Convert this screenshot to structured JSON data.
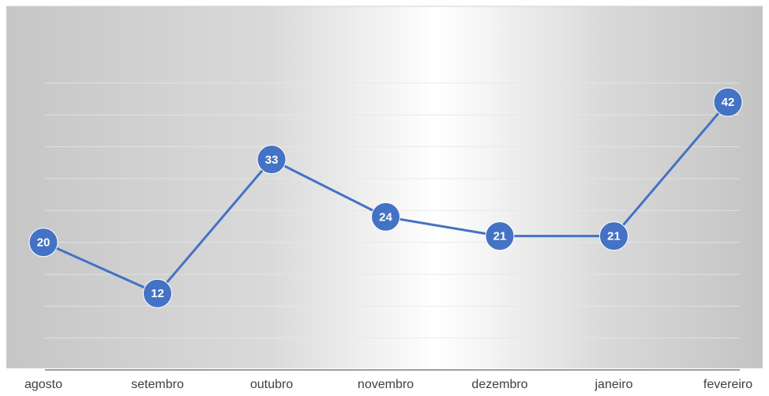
{
  "chart_data": {
    "type": "line",
    "categories": [
      "agosto",
      "setembro",
      "outubro",
      "novembro",
      "dezembro",
      "janeiro",
      "fevereiro"
    ],
    "values": [
      20,
      12,
      33,
      24,
      21,
      21,
      42
    ],
    "color": "#4472c4",
    "ylim": [
      0,
      45
    ],
    "yticks": [
      0,
      5,
      10,
      15,
      20,
      25,
      30,
      35,
      40,
      45
    ],
    "grid": true
  }
}
